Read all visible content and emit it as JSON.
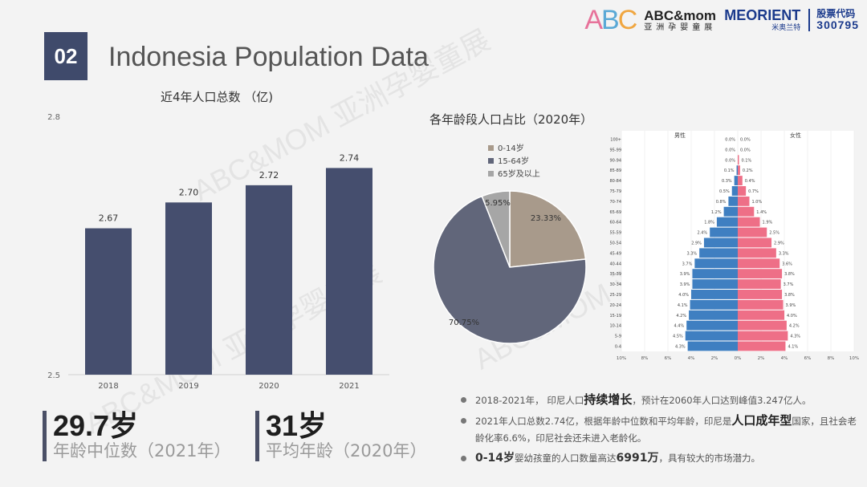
{
  "header": {
    "section_number": "02",
    "title": "Indonesia Population Data",
    "logo_mark": "ABC",
    "logo_text": "ABC&mom",
    "logo_subtext": "亚洲孕婴童展",
    "meorient": "MEORIENT",
    "meorient_sub": "米奥兰特",
    "stock_label": "股票代码",
    "stock_code": "300795"
  },
  "watermark": "ABC&MOM 亚洲孕婴童展",
  "colors": {
    "bar": "#454e6e",
    "slice_0_14": "#a89a8b",
    "slice_15_64": "#61667a",
    "slice_65": "#a6a6a6",
    "male": "#3f7fc1",
    "female": "#ee6f87"
  },
  "chart_data": [
    {
      "type": "bar",
      "title": "近4年人口总数 （亿)",
      "categories": [
        "2018",
        "2019",
        "2020",
        "2021"
      ],
      "values": [
        2.67,
        2.7,
        2.72,
        2.74
      ],
      "value_labels": [
        "2.67",
        "2.70",
        "2.72",
        "2.74"
      ],
      "ylim": [
        2.5,
        2.8
      ],
      "ytick_labels": [
        "2.5",
        "2.8"
      ],
      "grid": false
    },
    {
      "type": "pie",
      "title": "各年龄段人口占比（2020年）",
      "legend_position": "top-left",
      "labels": [
        "0-14岁",
        "15-64岁",
        "65岁及以上"
      ],
      "values": [
        23.33,
        70.75,
        5.95
      ],
      "value_labels": [
        "23.33%",
        "70.75%",
        "5.95%"
      ]
    },
    {
      "type": "bar",
      "subtype": "population-pyramid",
      "male_label": "男性",
      "female_label": "女性",
      "categories": [
        "0-4",
        "5-9",
        "10-14",
        "15-19",
        "20-24",
        "25-29",
        "30-34",
        "35-39",
        "40-44",
        "45-49",
        "50-54",
        "55-59",
        "60-64",
        "65-69",
        "70-74",
        "75-79",
        "80-84",
        "85-89",
        "90-94",
        "95-99",
        "100+"
      ],
      "male": [
        4.3,
        4.5,
        4.4,
        4.2,
        4.1,
        4.0,
        3.9,
        3.9,
        3.7,
        3.3,
        2.9,
        2.4,
        1.8,
        1.2,
        0.8,
        0.5,
        0.3,
        0.1,
        0.0,
        0.0,
        0.0
      ],
      "female": [
        4.1,
        4.3,
        4.2,
        4.0,
        3.9,
        3.8,
        3.7,
        3.8,
        3.6,
        3.3,
        2.9,
        2.5,
        1.9,
        1.4,
        1.0,
        0.7,
        0.4,
        0.2,
        0.1,
        0.0,
        0.0
      ],
      "male_labels": [
        "4.3%",
        "4.5%",
        "4.4%",
        "4.2%",
        "4.1%",
        "4.0%",
        "3.9%",
        "3.9%",
        "3.7%",
        "3.3%",
        "2.9%",
        "2.4%",
        "1.8%",
        "1.2%",
        "0.8%",
        "0.5%",
        "0.3%",
        "0.1%",
        "0.0%",
        "0.0%",
        "0.0%"
      ],
      "female_labels": [
        "4.1%",
        "4.3%",
        "4.2%",
        "4.0%",
        "3.9%",
        "3.8%",
        "3.7%",
        "3.8%",
        "3.6%",
        "3.3%",
        "2.9%",
        "2.5%",
        "1.9%",
        "1.4%",
        "1.0%",
        "0.7%",
        "0.4%",
        "0.2%",
        "0.1%",
        "0.0%",
        "0.0%"
      ],
      "xlim": [
        -10,
        10
      ],
      "xtick_values": [
        -10,
        -8,
        -6,
        -4,
        -2,
        0,
        2,
        4,
        6,
        8,
        10
      ],
      "xtick_labels": [
        "10%",
        "8%",
        "6%",
        "4%",
        "2%",
        "0%",
        "2%",
        "4%",
        "6%",
        "8%",
        "10%"
      ]
    }
  ],
  "stats": [
    {
      "value": "29.7岁",
      "label": "年龄中位数（2021年）"
    },
    {
      "value": "31岁",
      "label": "平均年龄（2020年）"
    }
  ],
  "bullets": [
    {
      "pre": "2018-2021年， 印尼人口",
      "bold": "持续增长",
      "post": "，预计在2060年人口达到峰值3.247亿人。"
    },
    {
      "pre": "2021年人口总数2.74亿，根据年龄中位数和平均年龄，印尼是",
      "bold": "人口成年型",
      "post": "国家，且社会老龄化率6.6%，印尼社会还未进入老龄化。"
    },
    {
      "bold1": "0-14岁",
      "mid": "婴幼孩童的人口数量高达",
      "bold2": "6991万",
      "post": "，具有较大的市场潜力。"
    }
  ]
}
